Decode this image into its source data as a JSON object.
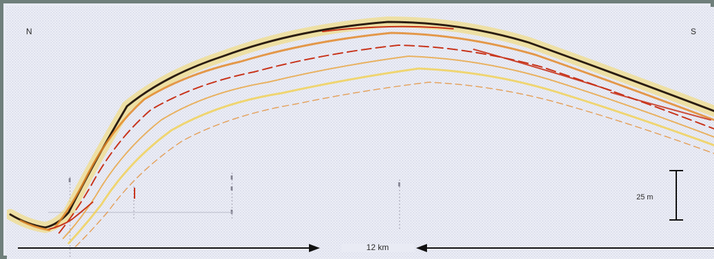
{
  "image": {
    "type": "ground-penetrating radar profile",
    "label_north": "N",
    "label_south": "S",
    "vertical_scale_label": "25 m",
    "horizontal_distance_label": "12 km",
    "colors": {
      "frame": "#6f7f7b",
      "background": "#e9ebf4",
      "reflector_dark": "#2b1d12",
      "reflector_red": "#c8331a",
      "reflector_orange": "#e38a2a",
      "reflector_yellow": "#f2cf46",
      "arrow": "#111111"
    }
  }
}
